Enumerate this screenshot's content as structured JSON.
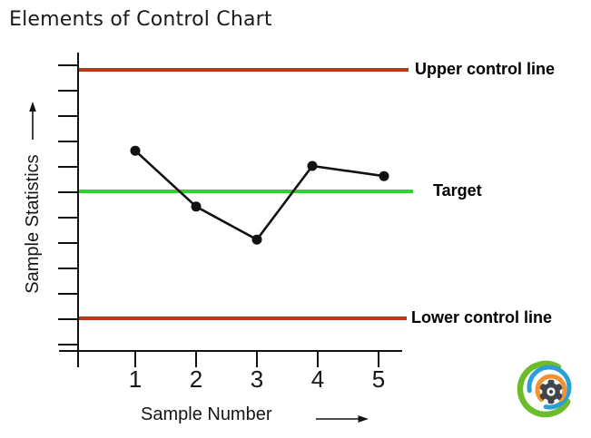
{
  "title": "Elements of Control Chart",
  "labels": {
    "upper": "Upper control line",
    "target": "Target",
    "lower": "Lower control line",
    "x_axis": "Sample Number",
    "y_axis": "Sample Statistics"
  },
  "colors": {
    "control_line": "#b43b14",
    "target_line": "#2fd32f",
    "series": "#121212",
    "axis": "#111111",
    "logo_green": "#6cbc2c",
    "logo_blue": "#2d9fd8",
    "logo_orange": "#f2912f",
    "logo_gear": "#42454a"
  },
  "chart_data": {
    "type": "line",
    "title": "Elements of Control Chart",
    "xlabel": "Sample Number",
    "ylabel": "Sample Statistics",
    "x": [
      1,
      2,
      3,
      4,
      5
    ],
    "series": [
      {
        "name": "Sample statistic",
        "values_relative_to_target": [
          1.6,
          -0.6,
          -1.9,
          1.0,
          0.6
        ]
      }
    ],
    "reference_lines": [
      {
        "key": "upper",
        "name": "Upper control line",
        "value": 4.8,
        "color": "#b43b14"
      },
      {
        "key": "target",
        "name": "Target",
        "value": 0,
        "color": "#2fd32f"
      },
      {
        "key": "lower",
        "name": "Lower control line",
        "value": -5.0,
        "color": "#b43b14"
      }
    ],
    "y_axis": {
      "tick_count": 12,
      "tick_labels": "none",
      "unit": "unlabeled tick spacings relative to Target"
    },
    "x_ticks": [
      1,
      2,
      3,
      4,
      5
    ],
    "grid": false,
    "legend_position": "labels right of each reference line"
  }
}
